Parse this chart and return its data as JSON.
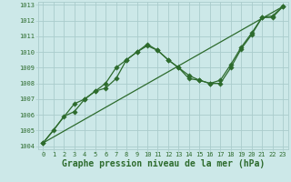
{
  "title": "",
  "xlabel": "Graphe pression niveau de la mer (hPa)",
  "ylabel": "",
  "background_color": "#cce8e8",
  "grid_color": "#aacccc",
  "line_color": "#2d6b2d",
  "xlim": [
    -0.5,
    23.5
  ],
  "ylim": [
    1003.8,
    1013.2
  ],
  "xticks": [
    0,
    1,
    2,
    3,
    4,
    5,
    6,
    7,
    8,
    9,
    10,
    11,
    12,
    13,
    14,
    15,
    16,
    17,
    18,
    19,
    20,
    21,
    22,
    23
  ],
  "yticks": [
    1004,
    1005,
    1006,
    1007,
    1008,
    1009,
    1010,
    1011,
    1012,
    1013
  ],
  "line1_x": [
    0,
    1,
    2,
    3,
    4,
    5,
    6,
    7,
    8,
    9,
    10,
    11,
    12,
    13,
    14,
    15,
    16,
    17,
    18,
    19,
    20,
    21,
    22,
    23
  ],
  "line1_y": [
    1004.2,
    1005.0,
    1005.9,
    1006.2,
    1007.0,
    1007.5,
    1008.0,
    1009.0,
    1009.5,
    1010.0,
    1010.5,
    1010.1,
    1009.5,
    1009.0,
    1008.3,
    1008.2,
    1008.0,
    1008.0,
    1009.0,
    1010.2,
    1011.1,
    1012.2,
    1012.3,
    1012.9
  ],
  "line2_x": [
    0,
    3,
    4,
    5,
    6,
    7,
    8,
    9,
    10,
    11,
    12,
    13,
    14,
    15,
    16,
    17,
    18,
    19,
    20,
    21,
    22,
    23
  ],
  "line2_y": [
    1004.2,
    1006.7,
    1007.0,
    1007.5,
    1007.7,
    1008.3,
    1009.5,
    1010.0,
    1010.4,
    1010.1,
    1009.5,
    1009.0,
    1008.5,
    1008.2,
    1008.0,
    1008.2,
    1009.2,
    1010.3,
    1011.2,
    1012.2,
    1012.2,
    1012.9
  ],
  "line3_x": [
    0,
    23
  ],
  "line3_y": [
    1004.2,
    1012.9
  ],
  "markersize": 2.8,
  "linewidth": 0.9,
  "xlabel_fontsize": 7,
  "tick_fontsize": 5,
  "xlabel_color": "#2d6b2d",
  "tick_color": "#2d6b2d"
}
